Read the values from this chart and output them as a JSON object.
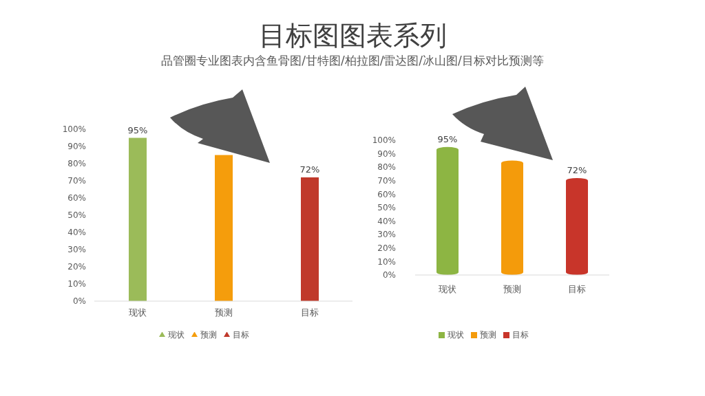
{
  "chart_data": [
    {
      "type": "bar",
      "title": "目标图图表系列",
      "subtitle": "品管圈专业图表内含鱼骨图/甘特图/柏拉图/雷达图/冰山图/目标对比预测等",
      "categories": [
        "现状",
        "预测",
        "目标"
      ],
      "series": [
        {
          "name": "现状",
          "color": "#9bbb59",
          "values": [
            95,
            null,
            null
          ],
          "value_labels": [
            "95%",
            null,
            null
          ]
        },
        {
          "name": "预测",
          "color": "#f59d0c",
          "values": [
            null,
            85,
            null
          ],
          "value_labels": [
            null,
            null,
            null
          ]
        },
        {
          "name": "目标",
          "color": "#c0392b",
          "values": [
            null,
            null,
            72
          ],
          "value_labels": [
            null,
            null,
            "72%"
          ]
        }
      ],
      "ylim": [
        0,
        100
      ],
      "yticks": [
        {
          "value": 0,
          "label": "0%"
        },
        {
          "value": 10,
          "label": "10%"
        },
        {
          "value": 20,
          "label": "20%"
        },
        {
          "value": 30,
          "label": "30%"
        },
        {
          "value": 40,
          "label": "40%"
        },
        {
          "value": 50,
          "label": "50%"
        },
        {
          "value": 60,
          "label": "60%"
        },
        {
          "value": 70,
          "label": "70%"
        },
        {
          "value": 80,
          "label": "80%"
        },
        {
          "value": 90,
          "label": "90%"
        },
        {
          "value": 100,
          "label": "100%"
        }
      ],
      "legend": "bottom"
    },
    {
      "type": "bar",
      "categories": [
        "现状",
        "预测",
        "目标"
      ],
      "series": [
        {
          "name": "现状",
          "color": "#8db543",
          "values": [
            95,
            null,
            null
          ],
          "value_labels": [
            "95%",
            null,
            null
          ]
        },
        {
          "name": "预测",
          "color": "#f49b0b",
          "values": [
            null,
            85,
            null
          ],
          "value_labels": [
            null,
            null,
            null
          ]
        },
        {
          "name": "目标",
          "color": "#c8352a",
          "values": [
            null,
            null,
            72
          ],
          "value_labels": [
            null,
            null,
            "72%"
          ]
        }
      ],
      "ylim": [
        0,
        100
      ],
      "yticks": [
        {
          "value": 0,
          "label": "0%"
        },
        {
          "value": 10,
          "label": "10%"
        },
        {
          "value": 20,
          "label": "20%"
        },
        {
          "value": 30,
          "label": "30%"
        },
        {
          "value": 40,
          "label": "40%"
        },
        {
          "value": 50,
          "label": "50%"
        },
        {
          "value": 60,
          "label": "60%"
        },
        {
          "value": 70,
          "label": "70%"
        },
        {
          "value": 80,
          "label": "80%"
        },
        {
          "value": 90,
          "label": "90%"
        },
        {
          "value": 100,
          "label": "100%"
        }
      ],
      "legend": "bottom"
    }
  ]
}
